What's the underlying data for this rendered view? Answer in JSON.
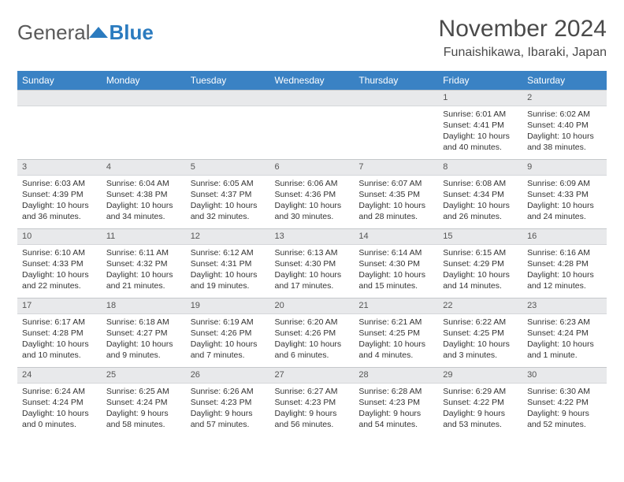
{
  "logo": {
    "part1": "General",
    "part2": "Blue"
  },
  "title": "November 2024",
  "location": "Funaishikawa, Ibaraki, Japan",
  "colors": {
    "header_bg": "#3a82c4",
    "header_text": "#ffffff",
    "daynum_bg": "#e8e9eb",
    "daynum_border": "#c5c8cb",
    "body_text": "#333333",
    "title_text": "#4a4a4a",
    "background": "#ffffff"
  },
  "day_headers": [
    "Sunday",
    "Monday",
    "Tuesday",
    "Wednesday",
    "Thursday",
    "Friday",
    "Saturday"
  ],
  "weeks": [
    [
      {
        "n": "",
        "sr": "",
        "ss": "",
        "dl": ""
      },
      {
        "n": "",
        "sr": "",
        "ss": "",
        "dl": ""
      },
      {
        "n": "",
        "sr": "",
        "ss": "",
        "dl": ""
      },
      {
        "n": "",
        "sr": "",
        "ss": "",
        "dl": ""
      },
      {
        "n": "",
        "sr": "",
        "ss": "",
        "dl": ""
      },
      {
        "n": "1",
        "sr": "Sunrise: 6:01 AM",
        "ss": "Sunset: 4:41 PM",
        "dl": "Daylight: 10 hours and 40 minutes."
      },
      {
        "n": "2",
        "sr": "Sunrise: 6:02 AM",
        "ss": "Sunset: 4:40 PM",
        "dl": "Daylight: 10 hours and 38 minutes."
      }
    ],
    [
      {
        "n": "3",
        "sr": "Sunrise: 6:03 AM",
        "ss": "Sunset: 4:39 PM",
        "dl": "Daylight: 10 hours and 36 minutes."
      },
      {
        "n": "4",
        "sr": "Sunrise: 6:04 AM",
        "ss": "Sunset: 4:38 PM",
        "dl": "Daylight: 10 hours and 34 minutes."
      },
      {
        "n": "5",
        "sr": "Sunrise: 6:05 AM",
        "ss": "Sunset: 4:37 PM",
        "dl": "Daylight: 10 hours and 32 minutes."
      },
      {
        "n": "6",
        "sr": "Sunrise: 6:06 AM",
        "ss": "Sunset: 4:36 PM",
        "dl": "Daylight: 10 hours and 30 minutes."
      },
      {
        "n": "7",
        "sr": "Sunrise: 6:07 AM",
        "ss": "Sunset: 4:35 PM",
        "dl": "Daylight: 10 hours and 28 minutes."
      },
      {
        "n": "8",
        "sr": "Sunrise: 6:08 AM",
        "ss": "Sunset: 4:34 PM",
        "dl": "Daylight: 10 hours and 26 minutes."
      },
      {
        "n": "9",
        "sr": "Sunrise: 6:09 AM",
        "ss": "Sunset: 4:33 PM",
        "dl": "Daylight: 10 hours and 24 minutes."
      }
    ],
    [
      {
        "n": "10",
        "sr": "Sunrise: 6:10 AM",
        "ss": "Sunset: 4:33 PM",
        "dl": "Daylight: 10 hours and 22 minutes."
      },
      {
        "n": "11",
        "sr": "Sunrise: 6:11 AM",
        "ss": "Sunset: 4:32 PM",
        "dl": "Daylight: 10 hours and 21 minutes."
      },
      {
        "n": "12",
        "sr": "Sunrise: 6:12 AM",
        "ss": "Sunset: 4:31 PM",
        "dl": "Daylight: 10 hours and 19 minutes."
      },
      {
        "n": "13",
        "sr": "Sunrise: 6:13 AM",
        "ss": "Sunset: 4:30 PM",
        "dl": "Daylight: 10 hours and 17 minutes."
      },
      {
        "n": "14",
        "sr": "Sunrise: 6:14 AM",
        "ss": "Sunset: 4:30 PM",
        "dl": "Daylight: 10 hours and 15 minutes."
      },
      {
        "n": "15",
        "sr": "Sunrise: 6:15 AM",
        "ss": "Sunset: 4:29 PM",
        "dl": "Daylight: 10 hours and 14 minutes."
      },
      {
        "n": "16",
        "sr": "Sunrise: 6:16 AM",
        "ss": "Sunset: 4:28 PM",
        "dl": "Daylight: 10 hours and 12 minutes."
      }
    ],
    [
      {
        "n": "17",
        "sr": "Sunrise: 6:17 AM",
        "ss": "Sunset: 4:28 PM",
        "dl": "Daylight: 10 hours and 10 minutes."
      },
      {
        "n": "18",
        "sr": "Sunrise: 6:18 AM",
        "ss": "Sunset: 4:27 PM",
        "dl": "Daylight: 10 hours and 9 minutes."
      },
      {
        "n": "19",
        "sr": "Sunrise: 6:19 AM",
        "ss": "Sunset: 4:26 PM",
        "dl": "Daylight: 10 hours and 7 minutes."
      },
      {
        "n": "20",
        "sr": "Sunrise: 6:20 AM",
        "ss": "Sunset: 4:26 PM",
        "dl": "Daylight: 10 hours and 6 minutes."
      },
      {
        "n": "21",
        "sr": "Sunrise: 6:21 AM",
        "ss": "Sunset: 4:25 PM",
        "dl": "Daylight: 10 hours and 4 minutes."
      },
      {
        "n": "22",
        "sr": "Sunrise: 6:22 AM",
        "ss": "Sunset: 4:25 PM",
        "dl": "Daylight: 10 hours and 3 minutes."
      },
      {
        "n": "23",
        "sr": "Sunrise: 6:23 AM",
        "ss": "Sunset: 4:24 PM",
        "dl": "Daylight: 10 hours and 1 minute."
      }
    ],
    [
      {
        "n": "24",
        "sr": "Sunrise: 6:24 AM",
        "ss": "Sunset: 4:24 PM",
        "dl": "Daylight: 10 hours and 0 minutes."
      },
      {
        "n": "25",
        "sr": "Sunrise: 6:25 AM",
        "ss": "Sunset: 4:24 PM",
        "dl": "Daylight: 9 hours and 58 minutes."
      },
      {
        "n": "26",
        "sr": "Sunrise: 6:26 AM",
        "ss": "Sunset: 4:23 PM",
        "dl": "Daylight: 9 hours and 57 minutes."
      },
      {
        "n": "27",
        "sr": "Sunrise: 6:27 AM",
        "ss": "Sunset: 4:23 PM",
        "dl": "Daylight: 9 hours and 56 minutes."
      },
      {
        "n": "28",
        "sr": "Sunrise: 6:28 AM",
        "ss": "Sunset: 4:23 PM",
        "dl": "Daylight: 9 hours and 54 minutes."
      },
      {
        "n": "29",
        "sr": "Sunrise: 6:29 AM",
        "ss": "Sunset: 4:22 PM",
        "dl": "Daylight: 9 hours and 53 minutes."
      },
      {
        "n": "30",
        "sr": "Sunrise: 6:30 AM",
        "ss": "Sunset: 4:22 PM",
        "dl": "Daylight: 9 hours and 52 minutes."
      }
    ]
  ]
}
